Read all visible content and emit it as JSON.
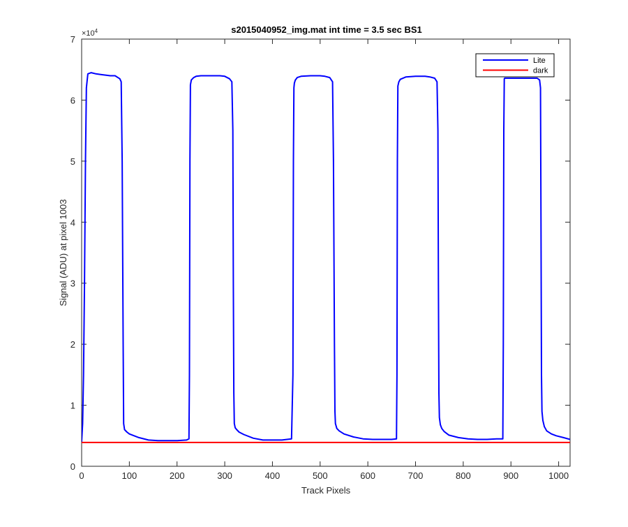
{
  "chart_data": {
    "type": "line",
    "title": "s2015040952_img.mat int time = 3.5 sec   BS1",
    "xlabel": "Track Pixels",
    "ylabel": "Signal (ADU) at pixel 1003",
    "y_exponent_label": "×10",
    "y_exponent": "4",
    "xlim": [
      0,
      1024
    ],
    "ylim": [
      0,
      70000
    ],
    "x_ticks": [
      0,
      100,
      200,
      300,
      400,
      500,
      600,
      700,
      800,
      900,
      1000
    ],
    "y_ticks": [
      0,
      10000,
      20000,
      30000,
      40000,
      50000,
      60000,
      70000
    ],
    "x_tick_labels": [
      "0",
      "100",
      "200",
      "300",
      "400",
      "500",
      "600",
      "700",
      "800",
      "900",
      "1000"
    ],
    "y_tick_labels": [
      "0",
      "1",
      "2",
      "3",
      "4",
      "5",
      "6",
      "7"
    ],
    "grid": false,
    "legend_position": "top-right",
    "series": [
      {
        "name": "Lite",
        "color": "#0000ff",
        "x": [
          0,
          2,
          4,
          6,
          8,
          10,
          13,
          20,
          30,
          40,
          50,
          60,
          70,
          80,
          83,
          85,
          87,
          88,
          90,
          95,
          100,
          120,
          140,
          160,
          180,
          200,
          220,
          225,
          226,
          227,
          228,
          230,
          235,
          240,
          250,
          270,
          290,
          300,
          310,
          315,
          317,
          318,
          319,
          320,
          322,
          325,
          330,
          340,
          360,
          380,
          400,
          420,
          440,
          443,
          444,
          445,
          446,
          448,
          452,
          460,
          480,
          500,
          510,
          520,
          526,
          528,
          530,
          531,
          532,
          535,
          540,
          550,
          570,
          590,
          610,
          630,
          650,
          660,
          661,
          662,
          663,
          665,
          668,
          680,
          700,
          720,
          730,
          740,
          745,
          747,
          748,
          749,
          750,
          752,
          755,
          760,
          770,
          790,
          810,
          830,
          850,
          870,
          883,
          884,
          885,
          886,
          887,
          888,
          890,
          895,
          900,
          930,
          955,
          960,
          962,
          963,
          964,
          965,
          967,
          970,
          975,
          985,
          995,
          1010,
          1024
        ],
        "y": [
          4000,
          7000,
          15000,
          30000,
          50000,
          62000,
          64300,
          64500,
          64300,
          64200,
          64100,
          64000,
          64000,
          63500,
          63000,
          50000,
          20000,
          7000,
          6000,
          5600,
          5300,
          4700,
          4300,
          4200,
          4200,
          4200,
          4300,
          4500,
          15000,
          50000,
          62500,
          63300,
          63700,
          63900,
          64000,
          64000,
          64000,
          63900,
          63500,
          63000,
          55000,
          30000,
          12000,
          7000,
          6300,
          6000,
          5600,
          5200,
          4600,
          4300,
          4300,
          4300,
          4500,
          15000,
          50000,
          62000,
          62800,
          63300,
          63700,
          63900,
          64000,
          64000,
          63900,
          63700,
          63000,
          50000,
          20000,
          9000,
          7000,
          6200,
          5800,
          5300,
          4800,
          4500,
          4400,
          4400,
          4400,
          4500,
          15000,
          50000,
          62300,
          63000,
          63400,
          63800,
          63900,
          63900,
          63800,
          63600,
          63000,
          55000,
          30000,
          12000,
          8000,
          6800,
          6200,
          5700,
          5100,
          4700,
          4500,
          4400,
          4400,
          4500,
          4500,
          20000,
          55000,
          63500,
          63600,
          63600,
          63600,
          63600,
          63600,
          63600,
          63600,
          63300,
          62000,
          40000,
          15000,
          9000,
          7500,
          6500,
          5800,
          5300,
          5000,
          4700,
          4400
        ]
      },
      {
        "name": "dark",
        "color": "#ff0000",
        "x": [
          0,
          1024
        ],
        "y": [
          3900,
          3900
        ]
      }
    ]
  }
}
